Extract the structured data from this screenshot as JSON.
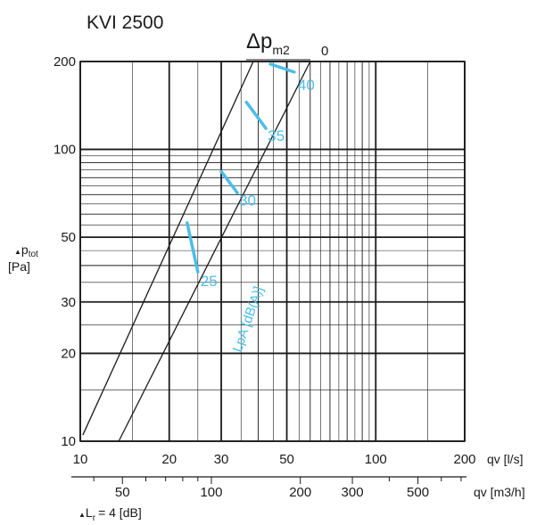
{
  "chart_data": {
    "type": "line",
    "title": "KVI 2500",
    "x_axis": {
      "label": "qv [l/s]",
      "scale": "log",
      "range": [
        10,
        200
      ],
      "ticks": [
        10,
        20,
        30,
        50,
        100,
        200
      ],
      "tick_labels": [
        "10",
        "20",
        "30",
        "50",
        "100",
        "200"
      ]
    },
    "x2_axis": {
      "label": "qv [m3/h]",
      "ticks": [
        50,
        100,
        200,
        300,
        500
      ],
      "tick_labels": [
        "50",
        "100",
        "200",
        "300",
        "500"
      ]
    },
    "y_axis": {
      "label_symbol": "p",
      "label_sub": "tot",
      "label_unit": "[Pa]",
      "scale": "log",
      "range": [
        10,
        200
      ],
      "ticks": [
        10,
        20,
        30,
        50,
        100,
        200
      ],
      "tick_labels": [
        "10",
        "20",
        "30",
        "50",
        "100",
        "200"
      ]
    },
    "series": [
      {
        "name": "0",
        "points": [
          [
            10.2,
            10.5
          ],
          [
            38.5,
            200
          ]
        ]
      },
      {
        "name": "",
        "points": [
          [
            13.5,
            10
          ],
          [
            60,
            200
          ]
        ]
      }
    ],
    "sound_series": {
      "label": "LpA [dB(A)]",
      "color": "#4dbde8",
      "segments": [
        {
          "label": "25",
          "points": [
            [
              23,
              56
            ],
            [
              25,
              38
            ]
          ]
        },
        {
          "label": "30",
          "points": [
            [
              30,
              84
            ],
            [
              34,
              71
            ]
          ]
        },
        {
          "label": "35",
          "points": [
            [
              36.5,
              145
            ],
            [
              42.5,
              118
            ]
          ]
        },
        {
          "label": "40",
          "points": [
            [
              44,
              196
            ],
            [
              53,
              184
            ]
          ]
        }
      ]
    },
    "dp_label": "Δp",
    "dp_sub": "m2",
    "footnote_symbol": "L",
    "footnote_sub": "r",
    "footnote_text": "= 4 [dB]",
    "grid": true
  }
}
